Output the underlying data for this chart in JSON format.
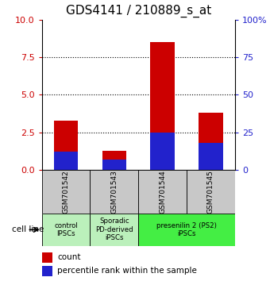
{
  "title": "GDS4141 / 210889_s_at",
  "samples": [
    "GSM701542",
    "GSM701543",
    "GSM701544",
    "GSM701545"
  ],
  "count_values": [
    3.3,
    1.3,
    8.5,
    3.8
  ],
  "percentile_values": [
    1.2,
    0.7,
    2.5,
    1.8
  ],
  "ylim_left": [
    0,
    10
  ],
  "ylim_right": [
    0,
    100
  ],
  "yticks_left": [
    0,
    2.5,
    5,
    7.5,
    10
  ],
  "yticks_right": [
    0,
    25,
    50,
    75,
    100
  ],
  "bar_color": "#cc0000",
  "percentile_color": "#2222cc",
  "bar_width": 0.5,
  "group_configs": [
    {
      "span": [
        0,
        0
      ],
      "label": "control\nIPSCs",
      "color": "#bbf0bb"
    },
    {
      "span": [
        1,
        1
      ],
      "label": "Sporadic\nPD-derived\niPSCs",
      "color": "#bbf0bb"
    },
    {
      "span": [
        2,
        3
      ],
      "label": "presenilin 2 (PS2)\niPSCs",
      "color": "#44ee44"
    }
  ],
  "cell_line_label": "cell line",
  "legend_count": "count",
  "legend_percentile": "percentile rank within the sample",
  "title_fontsize": 11,
  "sample_box_color": "#c8c8c8",
  "dotted_yvals": [
    2.5,
    5.0,
    7.5
  ]
}
